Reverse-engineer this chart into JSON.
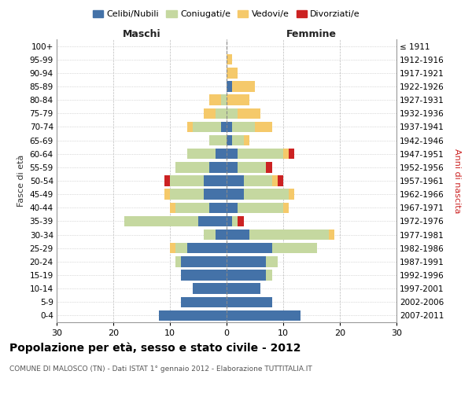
{
  "age_groups": [
    "0-4",
    "5-9",
    "10-14",
    "15-19",
    "20-24",
    "25-29",
    "30-34",
    "35-39",
    "40-44",
    "45-49",
    "50-54",
    "55-59",
    "60-64",
    "65-69",
    "70-74",
    "75-79",
    "80-84",
    "85-89",
    "90-94",
    "95-99",
    "100+"
  ],
  "birth_years": [
    "2007-2011",
    "2002-2006",
    "1997-2001",
    "1992-1996",
    "1987-1991",
    "1982-1986",
    "1977-1981",
    "1972-1976",
    "1967-1971",
    "1962-1966",
    "1957-1961",
    "1952-1956",
    "1947-1951",
    "1942-1946",
    "1937-1941",
    "1932-1936",
    "1927-1931",
    "1922-1926",
    "1917-1921",
    "1912-1916",
    "≤ 1911"
  ],
  "maschi": {
    "celibi": [
      12,
      8,
      6,
      8,
      8,
      7,
      2,
      5,
      3,
      4,
      4,
      3,
      2,
      0,
      1,
      0,
      0,
      0,
      0,
      0,
      0
    ],
    "coniugati": [
      0,
      0,
      0,
      0,
      1,
      2,
      2,
      13,
      6,
      6,
      6,
      6,
      5,
      3,
      5,
      2,
      1,
      0,
      0,
      0,
      0
    ],
    "vedovi": [
      0,
      0,
      0,
      0,
      0,
      1,
      0,
      0,
      1,
      1,
      0,
      0,
      0,
      0,
      1,
      2,
      2,
      0,
      0,
      0,
      0
    ],
    "divorziati": [
      0,
      0,
      0,
      0,
      0,
      0,
      0,
      0,
      0,
      0,
      1,
      0,
      0,
      0,
      0,
      0,
      0,
      0,
      0,
      0,
      0
    ]
  },
  "femmine": {
    "nubili": [
      13,
      8,
      6,
      7,
      7,
      8,
      4,
      1,
      2,
      3,
      3,
      2,
      2,
      1,
      1,
      0,
      0,
      1,
      0,
      0,
      0
    ],
    "coniugate": [
      0,
      0,
      0,
      1,
      2,
      8,
      14,
      1,
      8,
      8,
      5,
      5,
      8,
      2,
      4,
      2,
      0,
      0,
      0,
      0,
      0
    ],
    "vedove": [
      0,
      0,
      0,
      0,
      0,
      0,
      1,
      0,
      1,
      1,
      1,
      0,
      1,
      1,
      3,
      4,
      4,
      4,
      2,
      1,
      0
    ],
    "divorziate": [
      0,
      0,
      0,
      0,
      0,
      0,
      0,
      1,
      0,
      0,
      1,
      1,
      1,
      0,
      0,
      0,
      0,
      0,
      0,
      0,
      0
    ]
  },
  "colors": {
    "celibi": "#4472a8",
    "coniugati": "#c5d8a0",
    "vedovi": "#f5c96a",
    "divorziati": "#cc2222"
  },
  "xlim": 30,
  "title": "Popolazione per età, sesso e stato civile - 2012",
  "subtitle": "COMUNE DI MALOSCO (TN) - Dati ISTAT 1° gennaio 2012 - Elaborazione TUTTITALIA.IT",
  "ylabel_left": "Fasce di età",
  "ylabel_right": "Anni di nascita",
  "xlabel_maschi": "Maschi",
  "xlabel_femmine": "Femmine",
  "legend_labels": [
    "Celibi/Nubili",
    "Coniugati/e",
    "Vedovi/e",
    "Divorziati/e"
  ],
  "bg_color": "#ffffff",
  "grid_color": "#cccccc"
}
